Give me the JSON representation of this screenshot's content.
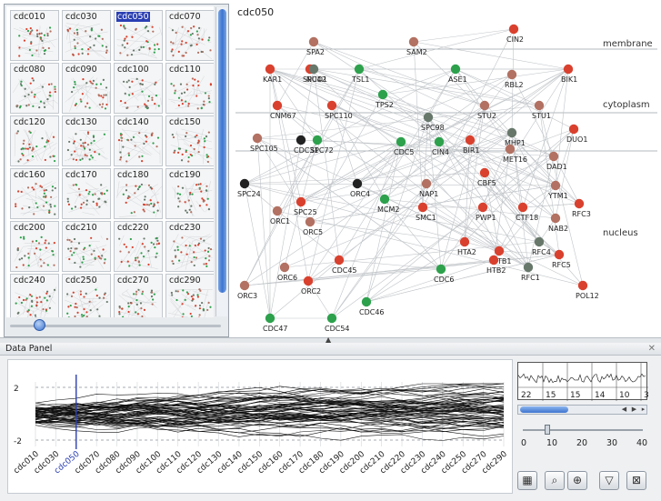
{
  "thumbnails": [
    "cdc010",
    "cdc030",
    "cdc050",
    "cdc070",
    "cdc080",
    "cdc090",
    "cdc100",
    "cdc110",
    "cdc120",
    "cdc130",
    "cdc140",
    "cdc150",
    "cdc160",
    "cdc170",
    "cdc180",
    "cdc190",
    "cdc200",
    "cdc210",
    "cdc220",
    "cdc230",
    "cdc240",
    "cdc250",
    "cdc270",
    "cdc290"
  ],
  "selected_thumbnail": "cdc050",
  "network": {
    "title": "cdc050",
    "compartments": [
      "membrane",
      "cytoplasm",
      "nucleus"
    ],
    "node_colors": {
      "red": "#d9412e",
      "salmon": "#b27162",
      "green": "#2ea14d",
      "gray": "#67786b",
      "black": "#222222"
    },
    "nodes": [
      {
        "id": "CIN2",
        "label": "CIN2",
        "color": "red"
      },
      {
        "id": "SPA2",
        "label": "SPA2",
        "color": "salmon"
      },
      {
        "id": "SAM2",
        "label": "SAM2",
        "color": "salmon"
      },
      {
        "id": "KAR1",
        "label": "KAR1",
        "color": "red"
      },
      {
        "id": "SPC42",
        "label": "SPC42",
        "color": "red"
      },
      {
        "id": "NUD1",
        "label": "NUD1",
        "color": "gray"
      },
      {
        "id": "TSL1",
        "label": "TSL1",
        "color": "green"
      },
      {
        "id": "TPS2",
        "label": "TPS2",
        "color": "green"
      },
      {
        "id": "ASE1",
        "label": "ASE1",
        "color": "green"
      },
      {
        "id": "RBL2",
        "label": "RBL2",
        "color": "salmon"
      },
      {
        "id": "BIK1",
        "label": "BIK1",
        "color": "red"
      },
      {
        "id": "CNM67",
        "label": "CNM67",
        "color": "red"
      },
      {
        "id": "SPC110",
        "label": "SPC110",
        "color": "red"
      },
      {
        "id": "STU2",
        "label": "STU2",
        "color": "salmon"
      },
      {
        "id": "STU1",
        "label": "STU1",
        "color": "salmon"
      },
      {
        "id": "SPC98",
        "label": "SPC98",
        "color": "gray"
      },
      {
        "id": "DUO1",
        "label": "DUO1",
        "color": "red"
      },
      {
        "id": "MHP1",
        "label": "MHP1",
        "color": "gray"
      },
      {
        "id": "SPC105",
        "label": "SPC105",
        "color": "salmon"
      },
      {
        "id": "CDC31",
        "label": "CDC31",
        "color": "black"
      },
      {
        "id": "SPC72",
        "label": "SPC72",
        "color": "green"
      },
      {
        "id": "CDC5",
        "label": "CDC5",
        "color": "green"
      },
      {
        "id": "CIN4",
        "label": "CIN4",
        "color": "green"
      },
      {
        "id": "BIR1",
        "label": "BIR1",
        "color": "red"
      },
      {
        "id": "MET16",
        "label": "MET16",
        "color": "salmon"
      },
      {
        "id": "DAD1",
        "label": "DAD1",
        "color": "salmon"
      },
      {
        "id": "SPC24",
        "label": "SPC24",
        "color": "black"
      },
      {
        "id": "SPC25",
        "label": "SPC25",
        "color": "red"
      },
      {
        "id": "ORC4",
        "label": "ORC4",
        "color": "black"
      },
      {
        "id": "NAP1",
        "label": "NAP1",
        "color": "salmon"
      },
      {
        "id": "CBF5",
        "label": "CBF5",
        "color": "red"
      },
      {
        "id": "YTM1",
        "label": "YTM1",
        "color": "salmon"
      },
      {
        "id": "RFC3",
        "label": "RFC3",
        "color": "red"
      },
      {
        "id": "ORC1",
        "label": "ORC1",
        "color": "salmon"
      },
      {
        "id": "ORC5",
        "label": "ORC5",
        "color": "salmon"
      },
      {
        "id": "MCM2",
        "label": "MCM2",
        "color": "green"
      },
      {
        "id": "SMC1",
        "label": "SMC1",
        "color": "red"
      },
      {
        "id": "PWP1",
        "label": "PWP1",
        "color": "red"
      },
      {
        "id": "CTF18",
        "label": "CTF18",
        "color": "red"
      },
      {
        "id": "NAB2",
        "label": "NAB2",
        "color": "salmon"
      },
      {
        "id": "HTA2",
        "label": "HTA2",
        "color": "red"
      },
      {
        "id": "HTB1",
        "label": "HTB1",
        "color": "red"
      },
      {
        "id": "HTB2",
        "label": "HTB2",
        "color": "red"
      },
      {
        "id": "RFC4",
        "label": "RFC4",
        "color": "gray"
      },
      {
        "id": "RFC5",
        "label": "RFC5",
        "color": "red"
      },
      {
        "id": "RFC1",
        "label": "RFC1",
        "color": "gray"
      },
      {
        "id": "ORC6",
        "label": "ORC6",
        "color": "salmon"
      },
      {
        "id": "CDC45",
        "label": "CDC45",
        "color": "red"
      },
      {
        "id": "ORC3",
        "label": "ORC3",
        "color": "salmon"
      },
      {
        "id": "ORC2",
        "label": "ORC2",
        "color": "red"
      },
      {
        "id": "CDC6",
        "label": "CDC6",
        "color": "green"
      },
      {
        "id": "POL12",
        "label": "POL12",
        "color": "red"
      },
      {
        "id": "CDC46",
        "label": "CDC46",
        "color": "green"
      },
      {
        "id": "CDC47",
        "label": "CDC47",
        "color": "green"
      },
      {
        "id": "CDC54",
        "label": "CDC54",
        "color": "green"
      }
    ]
  },
  "data_panel": {
    "title": "Data Panel",
    "y_ticks": [
      "2",
      "-2"
    ],
    "x_ticks": [
      "cdc010",
      "cdc030",
      "cdc050",
      "cdc070",
      "cdc080",
      "cdc090",
      "cdc100",
      "cdc110",
      "cdc120",
      "cdc130",
      "cdc140",
      "cdc150",
      "cdc160",
      "cdc170",
      "cdc180",
      "cdc190",
      "cdc200",
      "cdc210",
      "cdc220",
      "cdc230",
      "cdc240",
      "cdc250",
      "cdc270",
      "cdc290"
    ],
    "selected_timepoint": "cdc050",
    "overview_labels": [
      "22",
      "15",
      "15",
      "14",
      "10",
      "3"
    ],
    "slider_ticks": [
      "0",
      "10",
      "20",
      "30",
      "40"
    ],
    "slider_value": 10,
    "accent_color": "#2b3fb3"
  }
}
